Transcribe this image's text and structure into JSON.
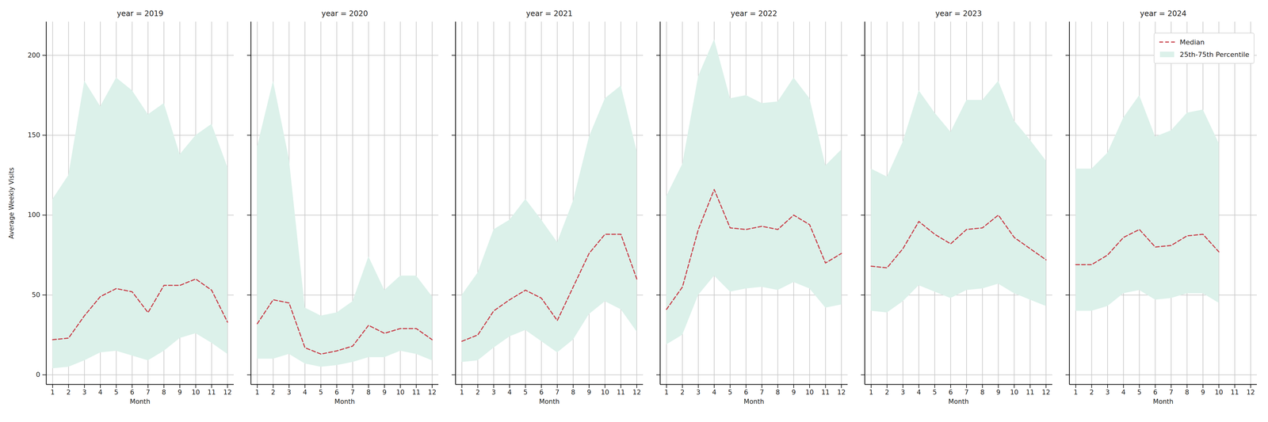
{
  "chart_data": {
    "type": "line",
    "x_label": "Month",
    "y_label": "Average Weekly Visits",
    "xlim": [
      0.6,
      12.4
    ],
    "xticks": [
      1,
      2,
      3,
      4,
      5,
      6,
      7,
      8,
      9,
      10,
      11,
      12
    ],
    "ylim": [
      -6,
      221
    ],
    "yticks": [
      0,
      50,
      100,
      150,
      200
    ],
    "grid": true,
    "legend": "upper right",
    "series": [
      {
        "name": "Median",
        "type": "line",
        "color": "#c8414b",
        "line_style": "dashed"
      },
      {
        "name": "25th-75th Percentile",
        "type": "area",
        "color": "#dcf1ea"
      }
    ],
    "panels": [
      {
        "title": "year = 2019",
        "x": [
          1,
          2,
          3,
          4,
          5,
          6,
          7,
          8,
          9,
          10,
          11,
          12
        ],
        "median": [
          22,
          23,
          37,
          49,
          54,
          52,
          39,
          56,
          56,
          60,
          53,
          33
        ],
        "lower": [
          4,
          5,
          9,
          14,
          15,
          12,
          9,
          15,
          23,
          26,
          20,
          13
        ],
        "upper": [
          110,
          125,
          184,
          168,
          186,
          178,
          163,
          170,
          138,
          150,
          157,
          130
        ]
      },
      {
        "title": "year = 2020",
        "x": [
          1,
          2,
          3,
          4,
          5,
          6,
          7,
          8,
          9,
          10,
          11,
          12
        ],
        "median": [
          32,
          47,
          45,
          17,
          13,
          15,
          18,
          31,
          26,
          29,
          29,
          22
        ],
        "lower": [
          10,
          10,
          13,
          7,
          5,
          6,
          8,
          11,
          11,
          15,
          13,
          9
        ],
        "upper": [
          143,
          184,
          135,
          42,
          37,
          39,
          46,
          74,
          53,
          62,
          62,
          49
        ]
      },
      {
        "title": "year = 2021",
        "x": [
          1,
          2,
          3,
          4,
          5,
          6,
          7,
          8,
          9,
          10,
          11,
          12
        ],
        "median": [
          21,
          25,
          40,
          47,
          53,
          48,
          34,
          55,
          76,
          88,
          88,
          60
        ],
        "lower": [
          8,
          9,
          17,
          24,
          28,
          21,
          14,
          22,
          38,
          46,
          41,
          27
        ],
        "upper": [
          50,
          64,
          91,
          97,
          110,
          97,
          83,
          109,
          149,
          173,
          181,
          140
        ]
      },
      {
        "title": "year = 2022",
        "x": [
          1,
          2,
          3,
          4,
          5,
          6,
          7,
          8,
          9,
          10,
          11,
          12
        ],
        "median": [
          41,
          55,
          91,
          116,
          92,
          91,
          93,
          91,
          100,
          94,
          70,
          76
        ],
        "lower": [
          19,
          25,
          50,
          62,
          52,
          54,
          55,
          53,
          58,
          54,
          42,
          44
        ],
        "upper": [
          112,
          132,
          187,
          210,
          173,
          175,
          170,
          171,
          186,
          173,
          131,
          141
        ]
      },
      {
        "title": "year = 2023",
        "x": [
          1,
          2,
          3,
          4,
          5,
          6,
          7,
          8,
          9,
          10,
          11,
          12
        ],
        "median": [
          68,
          67,
          79,
          96,
          88,
          82,
          91,
          92,
          100,
          86,
          79,
          72
        ],
        "lower": [
          40,
          39,
          46,
          56,
          52,
          48,
          53,
          54,
          57,
          51,
          47,
          43
        ],
        "upper": [
          129,
          124,
          146,
          178,
          164,
          152,
          172,
          172,
          184,
          159,
          147,
          134
        ]
      },
      {
        "title": "year = 2024",
        "x": [
          1,
          2,
          3,
          4,
          5,
          6,
          7,
          8,
          9,
          10
        ],
        "median": [
          69,
          69,
          75,
          86,
          91,
          80,
          81,
          87,
          88,
          77
        ],
        "lower": [
          40,
          40,
          43,
          51,
          53,
          47,
          48,
          51,
          51,
          45
        ],
        "upper": [
          129,
          129,
          139,
          161,
          175,
          149,
          153,
          164,
          166,
          145
        ]
      }
    ]
  }
}
